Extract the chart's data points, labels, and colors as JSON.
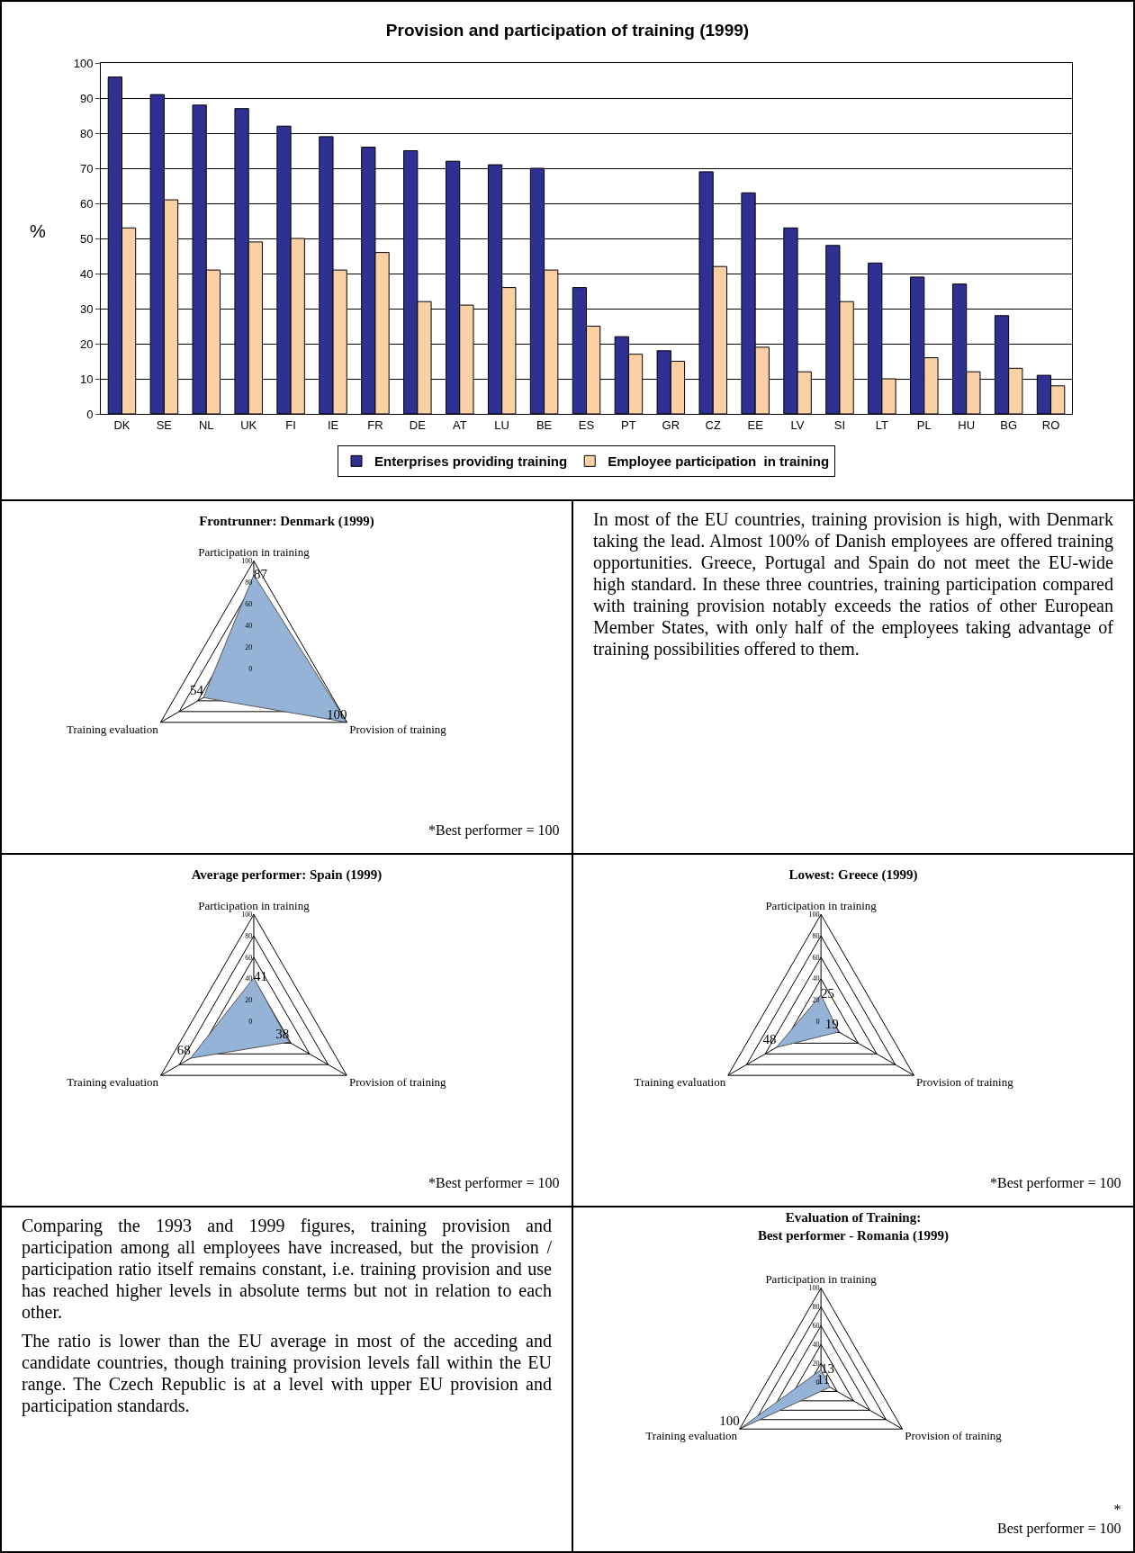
{
  "chart_data": [
    {
      "type": "bar",
      "title": "Provision and participation of training (1999)",
      "ylabel": "%",
      "categories": [
        "DK",
        "SE",
        "NL",
        "UK",
        "FI",
        "IE",
        "FR",
        "DE",
        "AT",
        "LU",
        "BE",
        "ES",
        "PT",
        "GR",
        "CZ",
        "EE",
        "LV",
        "SI",
        "LT",
        "PL",
        "HU",
        "BG",
        "RO"
      ],
      "series": [
        {
          "name": "Enterprises providing training",
          "color": "#2e3192",
          "values": [
            96,
            91,
            88,
            87,
            82,
            79,
            76,
            75,
            72,
            71,
            70,
            36,
            22,
            18,
            69,
            63,
            53,
            48,
            43,
            39,
            37,
            28,
            11
          ]
        },
        {
          "name": "Employee participation  in training",
          "color": "#fbd0a5",
          "values": [
            53,
            61,
            41,
            49,
            50,
            41,
            46,
            32,
            31,
            36,
            41,
            25,
            17,
            15,
            42,
            19,
            12,
            32,
            10,
            16,
            12,
            13,
            8
          ]
        }
      ],
      "ylim": [
        0,
        100
      ],
      "yticks": [
        0,
        10,
        20,
        30,
        40,
        50,
        60,
        70,
        80,
        90,
        100
      ],
      "grid": "y",
      "legend": "bottom"
    },
    {
      "type": "radar",
      "title": "Frontrunner: Denmark (1999)",
      "categories": [
        "Participation in training",
        "Provision of training",
        "Training evaluation"
      ],
      "series": [
        {
          "color": "#95b3d7",
          "values": [
            87,
            100,
            54
          ]
        }
      ],
      "ylim": [
        0,
        100
      ],
      "yticks": [
        0,
        20,
        40,
        60,
        80,
        100
      ],
      "data_labels": true,
      "annotations": [
        "*Best performer = 100"
      ]
    },
    {
      "type": "other",
      "annotations": [
        "In most of the EU countries, training provision is high, with Denmark taking the lead. Almost 100% of Danish employees are offered training opportunities. Greece, Portugal and Spain do not meet the EU-wide high standard. In these three countries, training participation compared with training provision notably exceeds the ratios of other European Member States, with only half of the employees taking advantage of training possibilities offered to them."
      ]
    },
    {
      "type": "radar",
      "title": "Average performer: Spain (1999)",
      "categories": [
        "Participation in training",
        "Provision of training",
        "Training evaluation"
      ],
      "series": [
        {
          "color": "#95b3d7",
          "values": [
            41,
            38,
            68
          ]
        }
      ],
      "ylim": [
        0,
        100
      ],
      "yticks": [
        0,
        20,
        40,
        60,
        80,
        100
      ],
      "data_labels": true,
      "annotations": [
        "*Best performer = 100"
      ]
    },
    {
      "type": "radar",
      "title": "Lowest: Greece (1999)",
      "categories": [
        "Participation in training",
        "Provision of training",
        "Training evaluation"
      ],
      "series": [
        {
          "color": "#95b3d7",
          "values": [
            25,
            19,
            48
          ]
        }
      ],
      "ylim": [
        0,
        100
      ],
      "yticks": [
        0,
        20,
        40,
        60,
        80,
        100
      ],
      "data_labels": true,
      "annotations": [
        "*Best performer = 100"
      ]
    },
    {
      "type": "other",
      "annotations": [
        "Comparing the 1993 and 1999 figures, training provision and participation among all employees have increased, but the provision / participation ratio itself remains constant, i.e. training provision and use has reached higher levels in absolute terms but not in relation to each other.",
        "The ratio is lower than the EU average in most of the acceding and candidate countries, though training provision levels fall within the EU range. The Czech Republic is at a level with upper EU provision and participation standards."
      ]
    },
    {
      "type": "radar",
      "title": "Evaluation of Training:\nBest performer - Romania (1999)",
      "categories": [
        "Participation in training",
        "Provision of training",
        "Training evaluation"
      ],
      "series": [
        {
          "color": "#95b3d7",
          "values": [
            13,
            11,
            100
          ]
        }
      ],
      "ylim": [
        0,
        100
      ],
      "yticks": [
        0,
        20,
        40,
        60,
        80,
        100
      ],
      "data_labels": true,
      "annotations": [
        "*\nBest performer = 100"
      ]
    }
  ]
}
